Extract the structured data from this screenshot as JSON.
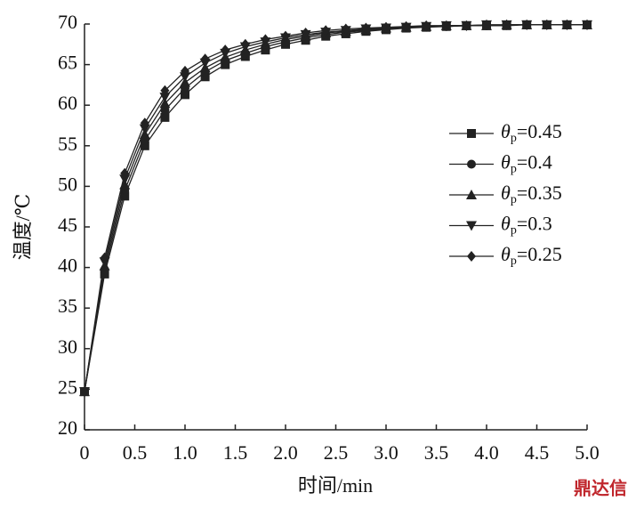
{
  "chart_data": {
    "type": "line",
    "x_label": "时间/min",
    "y_label": "温度/℃",
    "watermark": "鼎达信",
    "x": [
      0,
      0.2,
      0.4,
      0.6,
      0.8,
      1.0,
      1.2,
      1.4,
      1.6,
      1.8,
      2.0,
      2.2,
      2.4,
      2.6,
      2.8,
      3.0,
      3.2,
      3.4,
      3.6,
      3.8,
      4.0,
      4.2,
      4.4,
      4.6,
      4.8,
      5.0
    ],
    "xlim": [
      0,
      5
    ],
    "xticks": [
      0,
      0.5,
      {
        "value": 1,
        "label": "1.0"
      },
      1.5,
      {
        "value": 2,
        "label": "2.0"
      },
      2.5,
      {
        "value": 3,
        "label": "3.0"
      },
      3.5,
      {
        "value": 4,
        "label": "4.0"
      },
      4.5,
      {
        "value": 5,
        "label": "5.0"
      }
    ],
    "ylim": [
      20,
      70
    ],
    "yticks": [
      20,
      25,
      30,
      35,
      40,
      45,
      50,
      55,
      60,
      65,
      70
    ],
    "grid": false,
    "legend": "right",
    "series": [
      {
        "name": "θp=0.45",
        "color": "#222",
        "marker": "square",
        "values": [
          24.7,
          39.2,
          48.8,
          55.0,
          58.5,
          61.3,
          63.5,
          65.0,
          66.0,
          66.8,
          67.5,
          68.0,
          68.5,
          68.8,
          69.1,
          69.3,
          69.5,
          69.6,
          69.7,
          69.8,
          69.8,
          69.8,
          69.9,
          69.9,
          69.9,
          69.9
        ]
      },
      {
        "name": "θp=0.4",
        "color": "#222",
        "marker": "circle",
        "values": [
          24.7,
          39.7,
          49.5,
          55.7,
          59.4,
          62.1,
          64.1,
          65.5,
          66.4,
          67.2,
          67.8,
          68.3,
          68.7,
          69.0,
          69.2,
          69.4,
          69.6,
          69.7,
          69.7,
          69.8,
          69.8,
          69.9,
          69.9,
          69.9,
          69.9,
          69.9
        ]
      },
      {
        "name": "θp=0.35",
        "color": "#222",
        "marker": "triangle-up",
        "values": [
          24.7,
          40.2,
          50.2,
          56.4,
          60.2,
          62.8,
          64.6,
          65.9,
          66.8,
          67.5,
          68.1,
          68.5,
          68.9,
          69.1,
          69.3,
          69.5,
          69.6,
          69.7,
          69.8,
          69.8,
          69.8,
          69.9,
          69.9,
          69.9,
          69.9,
          69.9
        ]
      },
      {
        "name": "θp=0.3",
        "color": "#222",
        "marker": "triangle-down",
        "values": [
          24.7,
          40.7,
          50.9,
          57.1,
          61.0,
          63.5,
          65.2,
          66.4,
          67.2,
          67.8,
          68.3,
          68.7,
          69.0,
          69.2,
          69.4,
          69.5,
          69.6,
          69.7,
          69.8,
          69.8,
          69.9,
          69.9,
          69.9,
          69.9,
          69.9,
          69.9
        ]
      },
      {
        "name": "θp=0.25",
        "color": "#222",
        "marker": "diamond",
        "values": [
          24.7,
          41.2,
          51.6,
          57.8,
          61.8,
          64.2,
          65.7,
          66.8,
          67.5,
          68.1,
          68.5,
          68.9,
          69.2,
          69.4,
          69.5,
          69.6,
          69.7,
          69.8,
          69.8,
          69.8,
          69.9,
          69.9,
          69.9,
          69.9,
          69.9,
          69.9
        ]
      }
    ]
  }
}
